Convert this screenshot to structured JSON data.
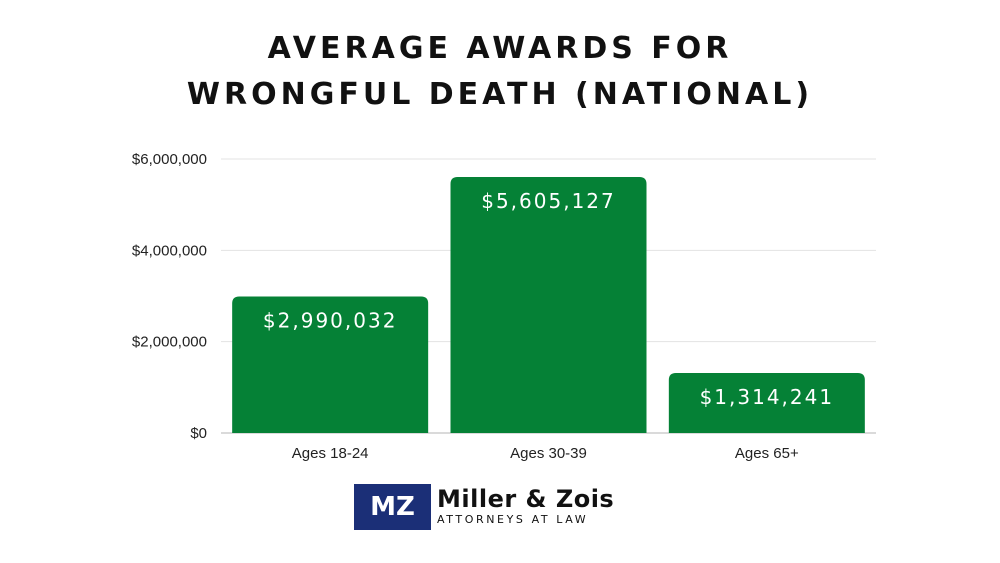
{
  "chart_data": {
    "type": "bar",
    "title_lines": [
      "AVERAGE AWARDS FOR",
      "WRONGFUL DEATH (NATIONAL)"
    ],
    "categories": [
      "Ages 18-24",
      "Ages 30-39",
      "Ages 65+"
    ],
    "values": [
      2990032,
      5605127,
      1314241
    ],
    "value_labels": [
      "$2,990,032",
      "$5,605,127",
      "$1,314,241"
    ],
    "y_ticks": [
      0,
      2000000,
      4000000,
      6000000
    ],
    "y_tick_labels": [
      "$0",
      "$2,000,000",
      "$4,000,000",
      "$6,000,000"
    ],
    "ylim": [
      0,
      6000000
    ],
    "grid": true,
    "bar_color": "#058136"
  },
  "logo": {
    "mark": "MZ",
    "name": "Miller & Zois",
    "tagline": "ATTORNEYS AT LAW",
    "mark_color": "#1b2f77"
  }
}
